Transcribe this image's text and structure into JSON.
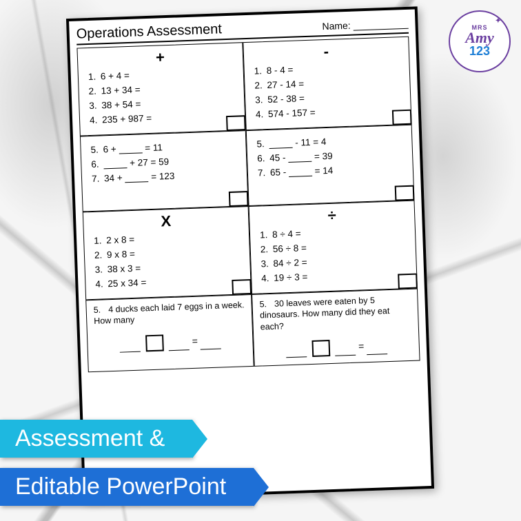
{
  "logo": {
    "mrs": "MRS",
    "amy": "Amy",
    "num": "123"
  },
  "worksheet": {
    "title": "Operations Assessment",
    "name_label": "Name:",
    "sections": {
      "add": {
        "symbol": "+",
        "problems": [
          "6 + 4 =",
          "13 + 34 =",
          "38 + 54 =",
          "235 + 987 ="
        ]
      },
      "sub": {
        "symbol": "-",
        "problems": [
          "8 - 4 =",
          "27 - 14 =",
          "52 - 38 =",
          "574 - 157 ="
        ]
      },
      "add_blank": {
        "problems": [
          {
            "pre": "6 + ",
            "post": " = 11"
          },
          {
            "pre": "",
            "post": " + 27 = 59"
          },
          {
            "pre": "34 + ",
            "post": " = 123"
          }
        ],
        "start_num": 5
      },
      "sub_blank": {
        "problems": [
          {
            "pre": "",
            "post": " - 11 =  4"
          },
          {
            "pre": "45 - ",
            "post": " = 39"
          },
          {
            "pre": "65 - ",
            "post": " = 14"
          }
        ],
        "start_num": 5
      },
      "mul": {
        "symbol": "X",
        "problems": [
          "2 x 8 =",
          "9 x 8 =",
          "38 x 3 =",
          "25 x 34 ="
        ]
      },
      "div": {
        "symbol": "÷",
        "problems": [
          "8 ÷ 4 =",
          "56 ÷ 8 =",
          "84 ÷ 2 =",
          "19 ÷ 3 ="
        ]
      },
      "word_mul": {
        "num": "5.",
        "text": "4 ducks each laid 7 eggs in a week. How many"
      },
      "word_div": {
        "num": "5.",
        "text": "30 leaves were eaten by 5 dinosaurs. How many did they eat each?"
      }
    }
  },
  "banners": {
    "b1": "Assessment &",
    "b2": "Editable PowerPoint"
  },
  "colors": {
    "banner1": "#1eb8e0",
    "banner2": "#1e6fd6",
    "logo_purple": "#6b3fa0"
  }
}
